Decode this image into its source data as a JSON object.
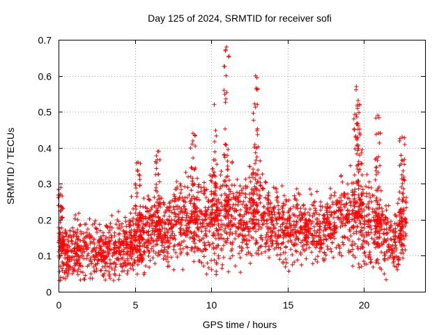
{
  "chart_data": {
    "type": "scatter",
    "title": "Day 125 of 2024, SRMTID for receiver sofi",
    "xlabel": "GPS time / hours",
    "ylabel": "SRMTID / TECUs",
    "xlim": [
      0,
      24
    ],
    "ylim": [
      0,
      0.7
    ],
    "xticks": [
      0,
      5,
      10,
      15,
      20
    ],
    "xtick_labels": [
      "0",
      "5",
      "10",
      "15",
      "20"
    ],
    "yticks": [
      0,
      0.1,
      0.2,
      0.3,
      0.4,
      0.5,
      0.6,
      0.7
    ],
    "ytick_labels": [
      "0",
      "0.1",
      "0.2",
      "0.3",
      "0.4",
      "0.5",
      "0.6",
      "0.7"
    ],
    "grid": true,
    "marker": "plus",
    "color": "#ff0000",
    "x_range_of_data": [
      0,
      22.8
    ],
    "envelope": [
      {
        "x": 0.0,
        "median": 0.11,
        "spread": 0.045
      },
      {
        "x": 1.0,
        "median": 0.11,
        "spread": 0.05
      },
      {
        "x": 2.0,
        "median": 0.11,
        "spread": 0.05
      },
      {
        "x": 3.0,
        "median": 0.11,
        "spread": 0.05
      },
      {
        "x": 4.0,
        "median": 0.12,
        "spread": 0.05
      },
      {
        "x": 5.0,
        "median": 0.14,
        "spread": 0.06
      },
      {
        "x": 6.0,
        "median": 0.17,
        "spread": 0.06
      },
      {
        "x": 7.0,
        "median": 0.17,
        "spread": 0.06
      },
      {
        "x": 8.0,
        "median": 0.2,
        "spread": 0.07
      },
      {
        "x": 9.0,
        "median": 0.19,
        "spread": 0.07
      },
      {
        "x": 10.0,
        "median": 0.2,
        "spread": 0.08
      },
      {
        "x": 11.0,
        "median": 0.21,
        "spread": 0.08
      },
      {
        "x": 12.0,
        "median": 0.2,
        "spread": 0.07
      },
      {
        "x": 13.0,
        "median": 0.22,
        "spread": 0.08
      },
      {
        "x": 14.0,
        "median": 0.19,
        "spread": 0.06
      },
      {
        "x": 15.0,
        "median": 0.18,
        "spread": 0.06
      },
      {
        "x": 16.0,
        "median": 0.18,
        "spread": 0.055
      },
      {
        "x": 17.0,
        "median": 0.17,
        "spread": 0.05
      },
      {
        "x": 18.0,
        "median": 0.19,
        "spread": 0.06
      },
      {
        "x": 19.0,
        "median": 0.21,
        "spread": 0.07
      },
      {
        "x": 20.0,
        "median": 0.2,
        "spread": 0.08
      },
      {
        "x": 21.0,
        "median": 0.17,
        "spread": 0.07
      },
      {
        "x": 22.0,
        "median": 0.14,
        "spread": 0.05
      },
      {
        "x": 22.8,
        "median": 0.2,
        "spread": 0.07
      }
    ],
    "peaks": [
      {
        "x": 0.15,
        "value": 0.29
      },
      {
        "x": 5.2,
        "value": 0.36
      },
      {
        "x": 6.5,
        "value": 0.39
      },
      {
        "x": 8.8,
        "value": 0.44
      },
      {
        "x": 10.2,
        "value": 0.52
      },
      {
        "x": 11.0,
        "value": 0.68
      },
      {
        "x": 12.9,
        "value": 0.6
      },
      {
        "x": 19.5,
        "value": 0.57
      },
      {
        "x": 19.7,
        "value": 0.52
      },
      {
        "x": 20.9,
        "value": 0.49
      },
      {
        "x": 22.5,
        "value": 0.43
      }
    ],
    "minimum_observed": 0.03,
    "approx_point_count": 2600
  }
}
